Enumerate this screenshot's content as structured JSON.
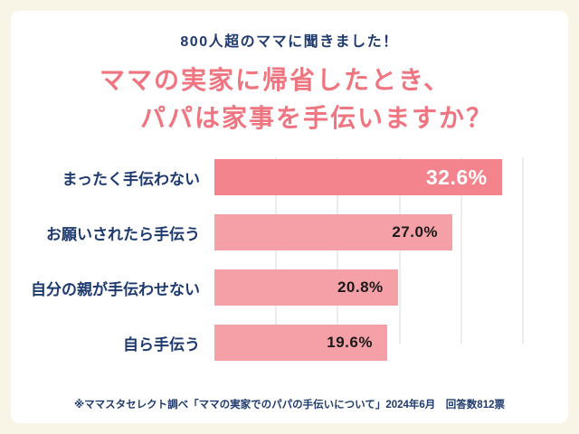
{
  "header": {
    "subtitle": "800人超のママに聞きました！"
  },
  "title": {
    "line1": "ママの実家に帰省したとき、",
    "line2": "パパは家事を手伝いますか？"
  },
  "chart_data": {
    "type": "bar",
    "orientation": "horizontal",
    "title": "ママの実家に帰省したとき、パパは家事を手伝いますか？",
    "categories": [
      "まったく手伝わない",
      "お願いされたら手伝う",
      "自分の親が手伝わせない",
      "自ら手伝う"
    ],
    "values": [
      32.6,
      27.0,
      20.8,
      19.6
    ],
    "value_labels": [
      "32.6%",
      "27.0%",
      "20.8%",
      "19.6%"
    ],
    "xlim": [
      0,
      35
    ],
    "highlight_index": 0,
    "grid": true,
    "legend": false
  },
  "footer": {
    "note": "※ママスタセレクト調べ「ママの実家でのパパの手伝いについて」2024年6月　回答数812票"
  },
  "colors": {
    "page_background": "#f8f4e6",
    "card_background": "#ffffff",
    "title_pink": "#ef7580",
    "text_navy": "#1e3a6e",
    "bar_highlight": "#f3838d",
    "bar_normal": "#f5a0a7",
    "value_text_highlight": "#ffffff",
    "value_text_normal": "#1a1a1a",
    "gridline": "#ececec"
  }
}
